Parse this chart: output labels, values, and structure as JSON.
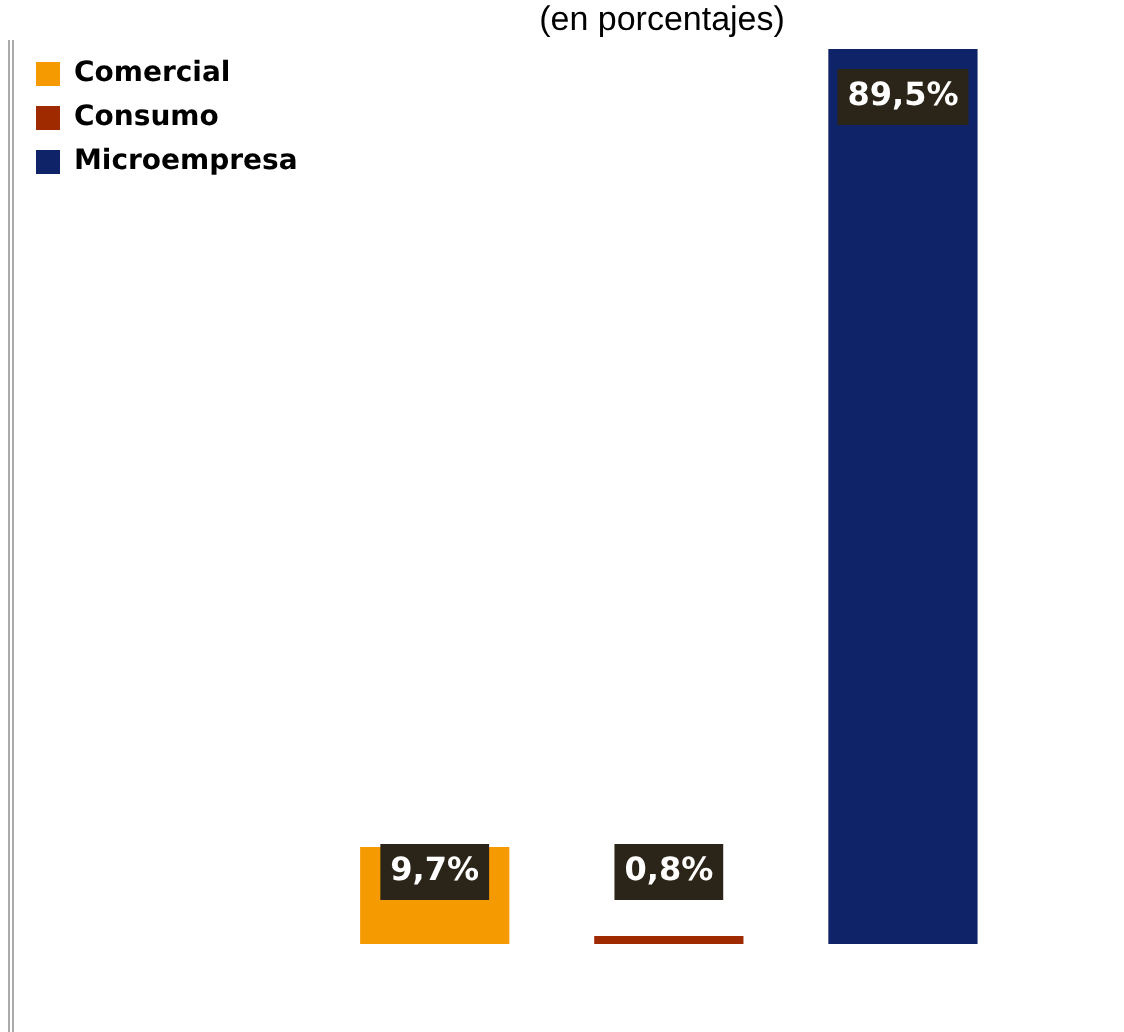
{
  "chart_data": {
    "type": "bar",
    "title": "(en porcentajes)",
    "categories": [
      null,
      null,
      null
    ],
    "stacked": true,
    "series": [
      {
        "name": "Comercial",
        "color": "#f59a00",
        "values": [
          9.7,
          null,
          null
        ],
        "value_labels": [
          "9,7%",
          null,
          null
        ]
      },
      {
        "name": "Consumo",
        "color": "#a02a00",
        "values": [
          null,
          0.8,
          null
        ],
        "value_labels": [
          null,
          "0,8%",
          null
        ]
      },
      {
        "name": "Microempresa",
        "color": "#0f2468",
        "values": [
          null,
          null,
          89.5
        ],
        "value_labels": [
          null,
          null,
          "89,5%"
        ]
      }
    ],
    "legend": "top left",
    "tick_labels": false
  }
}
